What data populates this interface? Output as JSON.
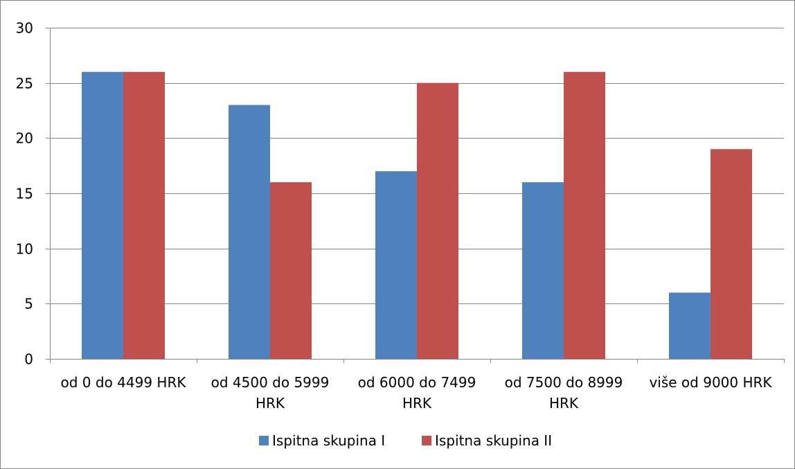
{
  "chart_data": {
    "type": "bar",
    "title": "",
    "xlabel": "",
    "ylabel": "",
    "categories": [
      [
        "od 0 do 4499 HRK"
      ],
      [
        "od 4500 do 5999",
        "HRK"
      ],
      [
        "od 6000 do 7499",
        "HRK"
      ],
      [
        "od 7500 do 8999",
        "HRK"
      ],
      [
        "više od 9000 HRK"
      ]
    ],
    "series": [
      {
        "name": "Ispitna skupina I",
        "color": "#4F81BD",
        "values": [
          26,
          23,
          17,
          16,
          6
        ]
      },
      {
        "name": "Ispitna skupina II",
        "color": "#C0504D",
        "values": [
          26,
          16,
          25,
          26,
          19
        ]
      }
    ],
    "ylim": [
      0,
      30
    ],
    "yticks": [
      0,
      5,
      10,
      15,
      20,
      25,
      30
    ],
    "grid": true,
    "legend_position": "bottom"
  }
}
